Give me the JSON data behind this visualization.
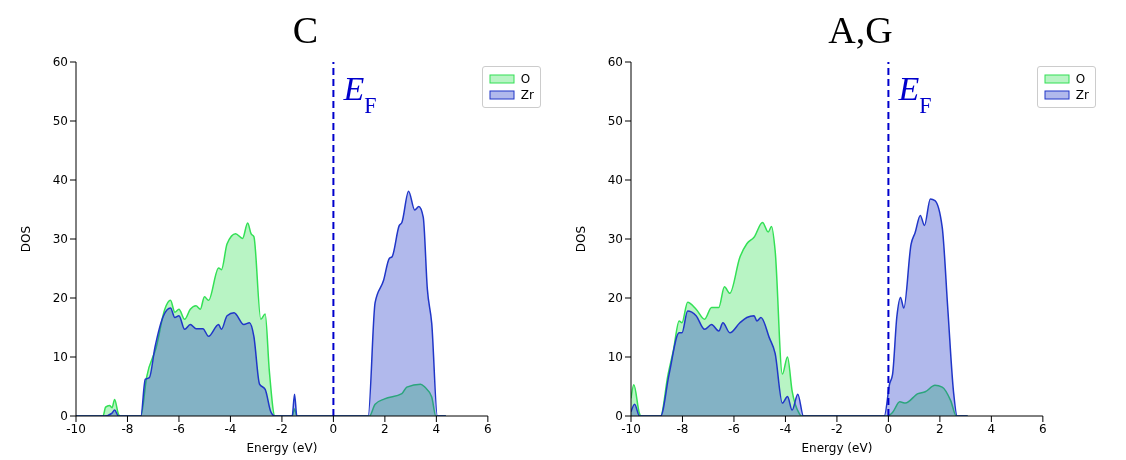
{
  "chart_data": [
    {
      "type": "area",
      "title": "C",
      "xlabel": "Energy (eV)",
      "ylabel": "DOS",
      "xlim": [
        -10,
        6
      ],
      "xticks": [
        -10,
        -8,
        -6,
        -4,
        -2,
        0,
        2,
        4,
        6
      ],
      "ylim": [
        0,
        60
      ],
      "yticks": [
        0,
        10,
        20,
        30,
        40,
        50,
        60
      ],
      "grid": false,
      "legend": "top right",
      "ref_lines": [
        {
          "axis": "x",
          "value": 0,
          "label": "E$_{F}$",
          "color": "#0000cc",
          "line_style": "dashed"
        }
      ],
      "series": [
        {
          "name": "O",
          "color": "#33e055",
          "x": [
            -10,
            -8.95,
            -8.85,
            -8.7,
            -8.6,
            -8.5,
            -8.35,
            -8.3,
            -7.48,
            -7.26,
            -6.88,
            -6.55,
            -6.33,
            -6.16,
            -6.0,
            -5.78,
            -5.56,
            -5.34,
            -5.17,
            -5.01,
            -4.85,
            -4.46,
            -4.35,
            -4.13,
            -3.8,
            -3.53,
            -3.33,
            -3.2,
            -3.09,
            -2.82,
            -2.65,
            -2.49,
            -2.27,
            -1.6,
            -1.51,
            -1.42,
            1.4,
            1.62,
            1.99,
            2.66,
            2.85,
            3.39,
            3.55,
            3.82,
            3.98,
            4.37
          ],
          "values": [
            0,
            0,
            1.5,
            1.8,
            1.4,
            2.8,
            0.3,
            0,
            0,
            6.5,
            11.7,
            18.1,
            19.6,
            17.6,
            18.1,
            16.4,
            18.1,
            18.7,
            18.1,
            20.2,
            19.6,
            25.1,
            24.8,
            29.2,
            30.9,
            30.1,
            32.7,
            30.9,
            30.4,
            16.4,
            17.3,
            7.7,
            0,
            0,
            1.2,
            0,
            0,
            2,
            2.9,
            3.8,
            4.9,
            5.4,
            4.9,
            3.2,
            0,
            0
          ]
        },
        {
          "name": "Zr",
          "color": "#2036c8",
          "x": [
            -10,
            -8.9,
            -8.6,
            -8.5,
            -8.35,
            -7.48,
            -7.31,
            -7.15,
            -6.93,
            -6.6,
            -6.33,
            -6.16,
            -6.0,
            -5.78,
            -5.56,
            -5.34,
            -5.07,
            -4.85,
            -4.46,
            -4.35,
            -4.13,
            -3.86,
            -3.48,
            -3.26,
            -3.09,
            -2.87,
            -2.65,
            -2.43,
            -2.27,
            -1.6,
            -1.51,
            -1.42,
            1.35,
            1.62,
            1.95,
            2.17,
            2.28,
            2.56,
            2.66,
            2.92,
            3.16,
            3.32,
            3.49,
            3.65,
            3.82,
            4.04,
            4.37
          ],
          "values": [
            0,
            0,
            0.5,
            1.0,
            0,
            0,
            6.2,
            6.5,
            11.7,
            17,
            18.3,
            16.7,
            17,
            14.7,
            15.5,
            14.8,
            14.8,
            13.5,
            15.5,
            14.7,
            17,
            17.5,
            15.5,
            15.8,
            13.5,
            5.4,
            4.5,
            0.7,
            0,
            0,
            3.7,
            0,
            0,
            19.2,
            23,
            26.7,
            27,
            32.3,
            32.8,
            38.1,
            34.9,
            35.5,
            33.7,
            21.5,
            15.7,
            0,
            0
          ]
        }
      ]
    },
    {
      "type": "area",
      "title": "A,G",
      "xlabel": "Energy (eV)",
      "ylabel": "DOS",
      "xlim": [
        -10,
        6
      ],
      "xticks": [
        -10,
        -8,
        -6,
        -4,
        -2,
        0,
        2,
        4,
        6
      ],
      "ylim": [
        0,
        60
      ],
      "yticks": [
        0,
        10,
        20,
        30,
        40,
        50,
        60
      ],
      "grid": false,
      "legend": "top right",
      "ref_lines": [
        {
          "axis": "x",
          "value": 0,
          "label": "E$_{F}$",
          "color": "#0000cc",
          "line_style": "dashed"
        }
      ],
      "series": [
        {
          "name": "O",
          "color": "#33e055",
          "x": [
            -10,
            -9.89,
            -9.67,
            -9.62,
            -8.85,
            -8.57,
            -8.35,
            -8.13,
            -8.02,
            -7.8,
            -7.47,
            -7.14,
            -6.87,
            -6.59,
            -6.37,
            -6.16,
            -5.77,
            -5.5,
            -5.22,
            -4.89,
            -4.67,
            -4.54,
            -4.4,
            -4.12,
            -3.92,
            -3.74,
            -3.46,
            -3.38,
            -0.05,
            0.16,
            0.44,
            0.66,
            1.15,
            1.43,
            1.81,
            2.09,
            2.42,
            2.64,
            3.08
          ],
          "values": [
            3.0,
            5.3,
            0.4,
            0,
            0,
            6.8,
            11.2,
            16.1,
            15.8,
            19.3,
            18.1,
            16.4,
            18.4,
            18.4,
            21.9,
            20.8,
            26.9,
            29.2,
            30.3,
            32.8,
            31.2,
            32.1,
            28,
            7.1,
            10,
            4.2,
            0.4,
            0,
            0,
            0.6,
            2.4,
            2.2,
            3.8,
            4.1,
            5.2,
            4.9,
            2.6,
            0,
            0
          ]
        },
        {
          "name": "Zr",
          "color": "#2036c8",
          "x": [
            -10,
            -9.86,
            -9.67,
            -8.85,
            -8.52,
            -8.13,
            -8.02,
            -7.8,
            -7.47,
            -7.14,
            -6.87,
            -6.59,
            -6.43,
            -6.16,
            -5.77,
            -5.5,
            -5.22,
            -5.11,
            -4.95,
            -4.62,
            -4.4,
            -4.12,
            -3.92,
            -3.74,
            -3.52,
            -3.3,
            -0.16,
            0.05,
            0.16,
            0.33,
            0.47,
            0.6,
            0.88,
            1.04,
            1.24,
            1.4,
            1.63,
            1.81,
            2.09,
            2.31,
            2.53,
            2.67,
            3.08
          ],
          "values": [
            0.7,
            2.0,
            0,
            0,
            7.1,
            14.1,
            14.1,
            17.8,
            17,
            14.7,
            15.5,
            14.4,
            15.8,
            14.1,
            15.8,
            16.7,
            17,
            16.1,
            16.7,
            13.2,
            10.6,
            2.2,
            3.3,
            1.0,
            3.7,
            0,
            0,
            5.5,
            7,
            16.9,
            20.1,
            18.3,
            29.1,
            31.1,
            34,
            32.3,
            36.8,
            36.5,
            32,
            18,
            4.1,
            0,
            0
          ]
        }
      ]
    }
  ]
}
